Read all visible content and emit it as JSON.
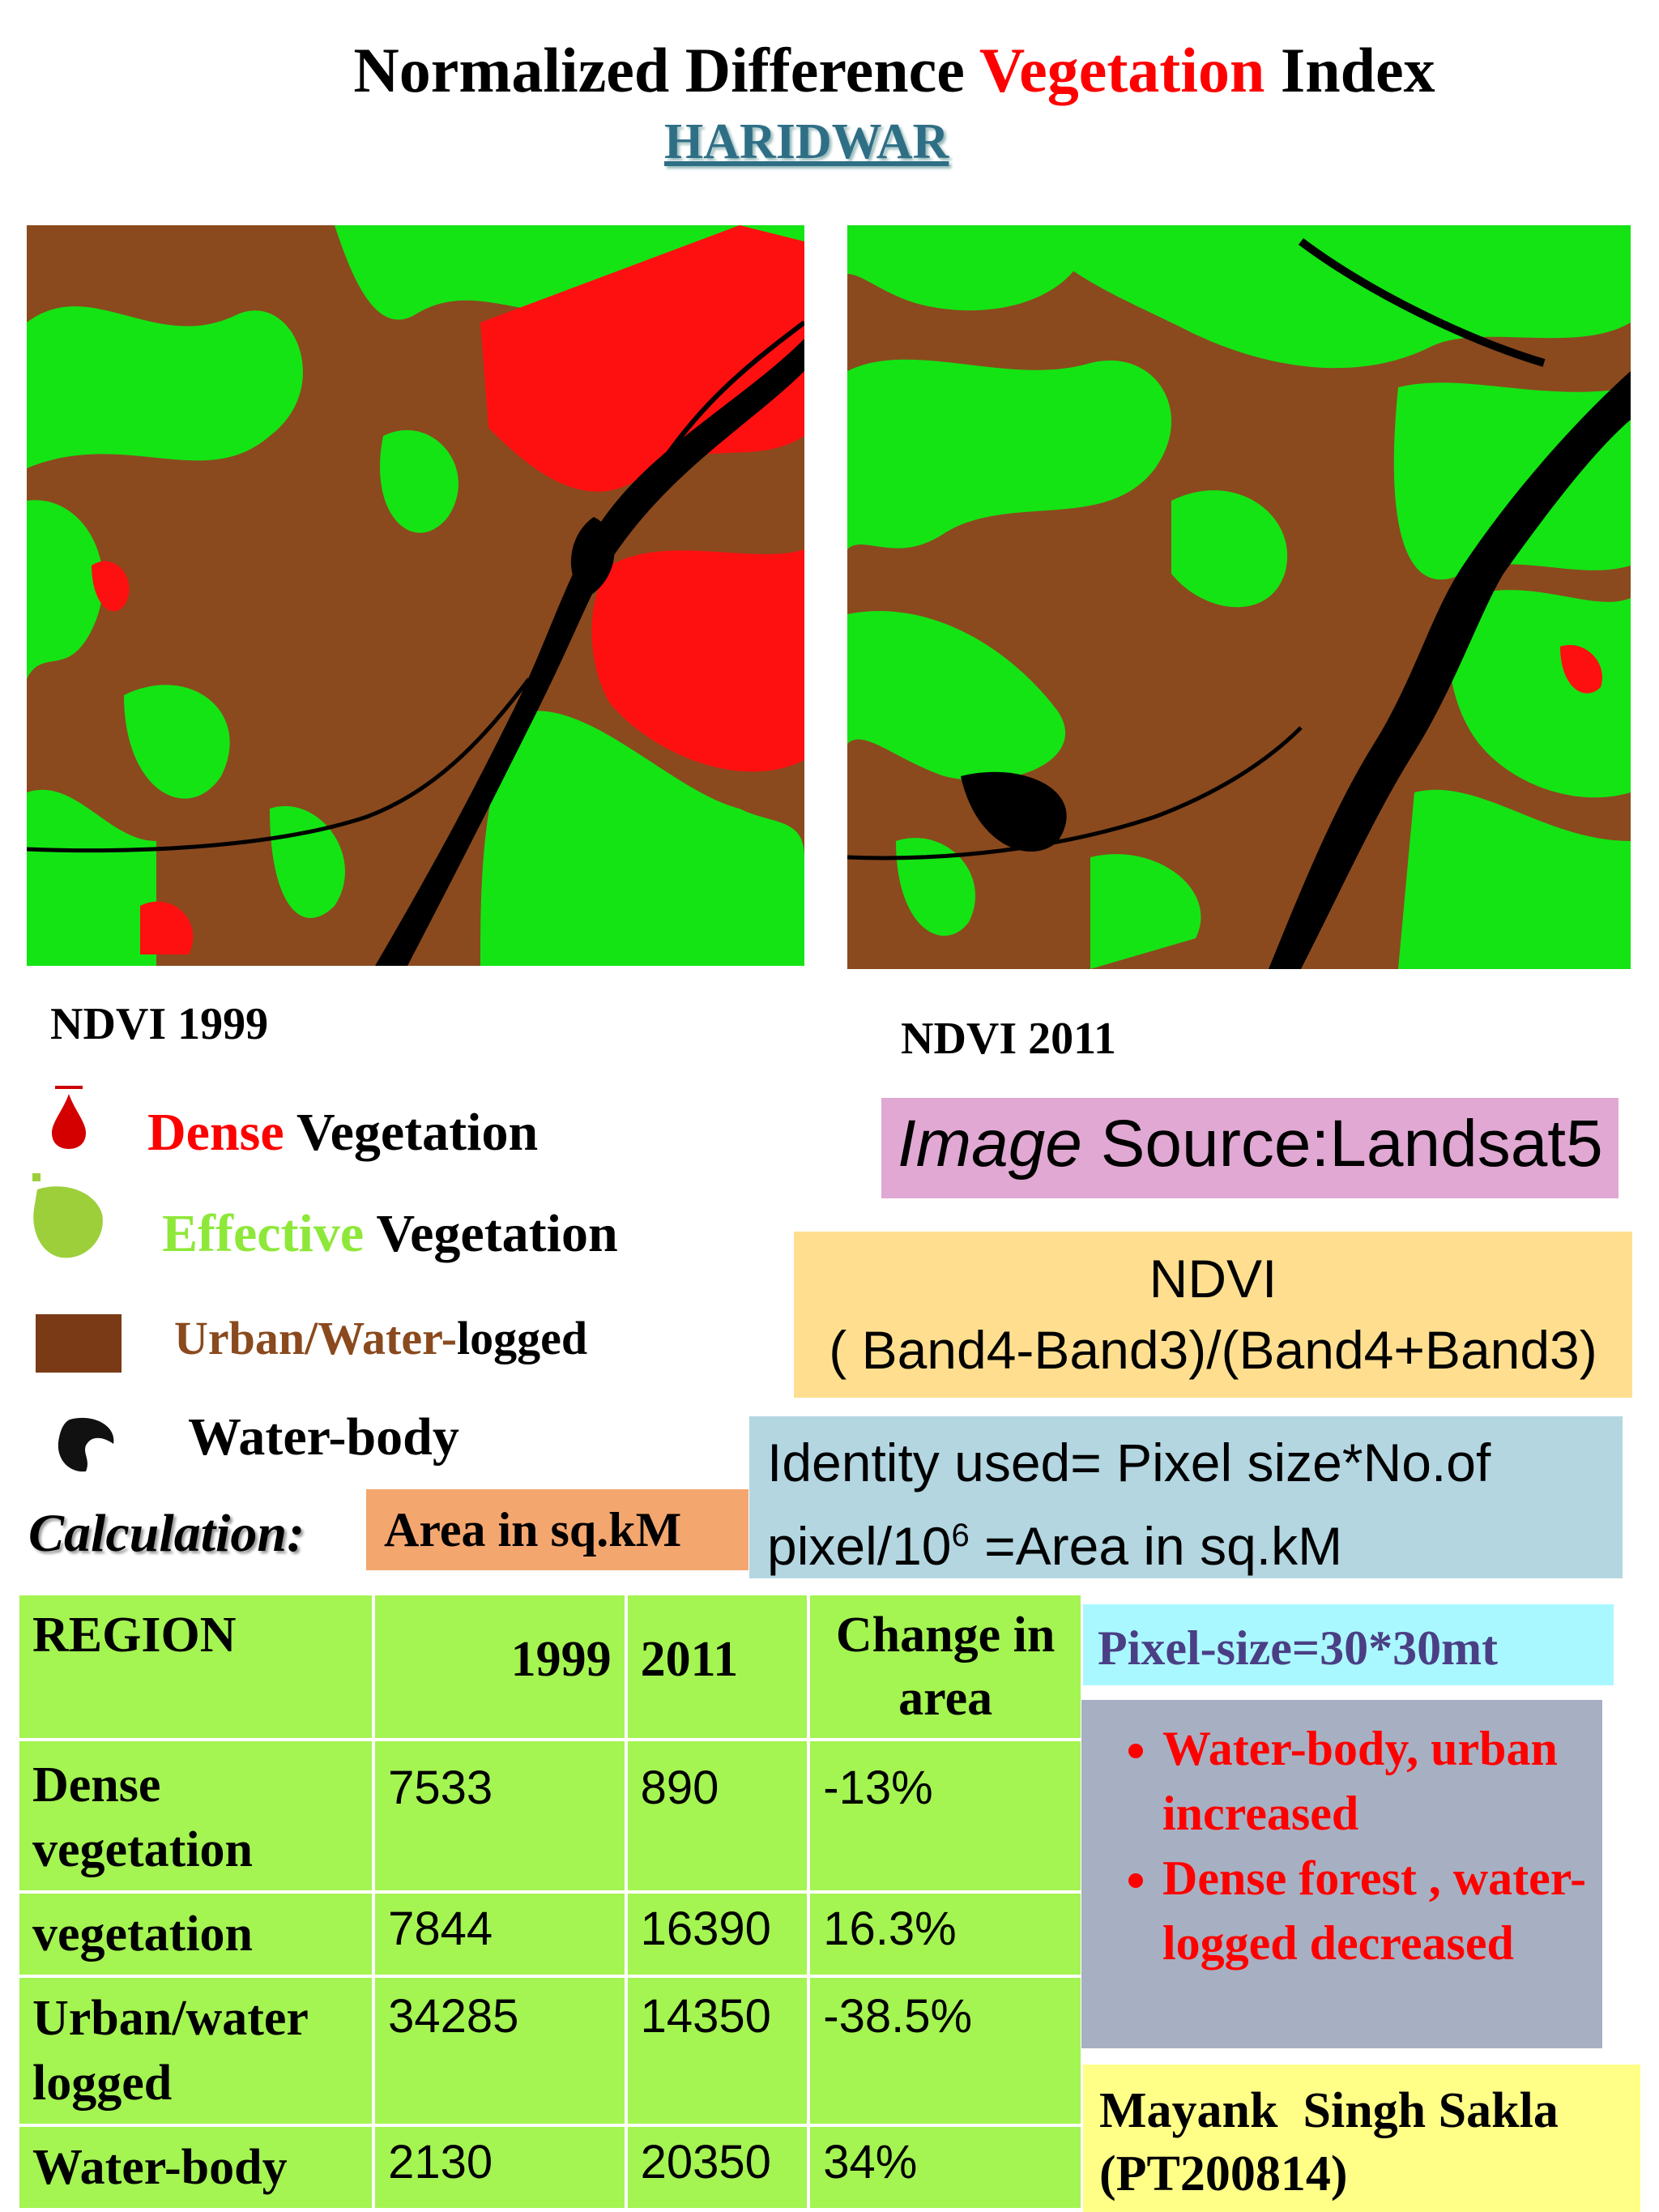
{
  "title": {
    "part1": "Normalized Difference ",
    "part2": "Vegetation",
    "part3": " Index"
  },
  "subtitle": "HARIDWAR",
  "maps": {
    "left_caption": "NDVI 1999",
    "right_caption": "NDVI 2011"
  },
  "legend": {
    "dense": {
      "colored": "Dense",
      "rest": " Vegetation",
      "color": "#ff0000"
    },
    "effective": {
      "colored": "Effective",
      "rest": " Vegetation",
      "color": "#8ee83a"
    },
    "urban": {
      "colored": "Urban/Water-",
      "rest": "logged",
      "color": "#8a4a1e"
    },
    "water": {
      "label": "Water-body"
    }
  },
  "image_source": {
    "italic": "Image",
    "rest": " Source:Landsat5"
  },
  "formula": {
    "line1": "NDVI",
    "line2": "( Band4-Band3)/(Band4+Band3)"
  },
  "identity": {
    "line1": "Identity used= Pixel size*No.of",
    "line2a": "pixel/10",
    "sup": "6",
    "line2b": " =Area in  sq.kM"
  },
  "calculation": {
    "label": "Calculation:",
    "area_unit": "Area in sq.kM"
  },
  "table": {
    "headers": [
      "REGION",
      "1999",
      "2011",
      "Change in area"
    ],
    "rows": [
      {
        "region": "Dense vegetation",
        "y1999": "7533",
        "y2011": "890",
        "change": "-13%"
      },
      {
        "region": "vegetation",
        "y1999": "7844",
        "y2011": "16390",
        "change": "16.3%"
      },
      {
        "region": "Urban/water logged",
        "y1999": "34285",
        "y2011": "14350",
        "change": "-38.5%"
      },
      {
        "region": "Water-body",
        "y1999": "2130",
        "y2011": "20350",
        "change": "34%"
      }
    ]
  },
  "pixel_size": "Pixel-size=30*30mt",
  "conclusions": [
    "Water-body, urban increased",
    "Dense forest , water-logged decreased"
  ],
  "author": {
    "name": "Mayank  Singh Sakla",
    "id": "(PT200814)"
  },
  "colors": {
    "dense": "#ff0000",
    "effective": "#00ff00",
    "urban": "#8a4a1e",
    "water": "#000000"
  }
}
